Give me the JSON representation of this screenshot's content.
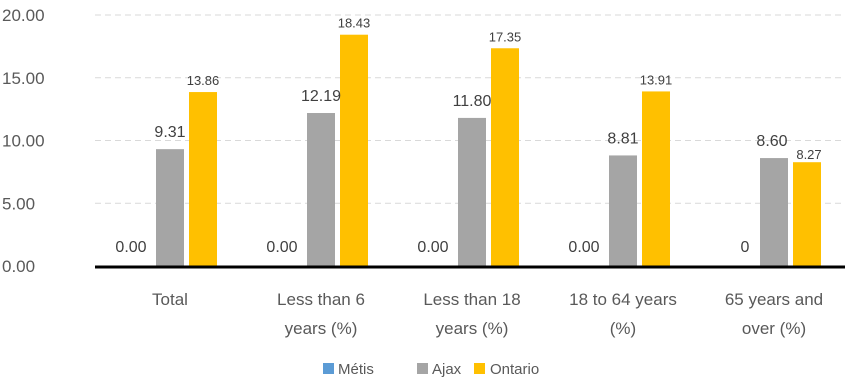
{
  "chart_data": {
    "type": "bar",
    "title": "",
    "xlabel": "",
    "ylabel": "",
    "ylim": [
      0,
      20
    ],
    "yticks": [
      "0.00",
      "5.00",
      "10.00",
      "15.00",
      "20.00"
    ],
    "grid": true,
    "legend_position": "bottom",
    "categories": [
      [
        "Total"
      ],
      [
        "Less than 6",
        "years (%)"
      ],
      [
        "Less than 18",
        "years (%)"
      ],
      [
        "18 to 64 years",
        "(%)"
      ],
      [
        "65 years and",
        "over (%)"
      ]
    ],
    "series": [
      {
        "name": "Métis",
        "color": "#5B9BD5",
        "values": [
          0,
          0,
          0,
          0,
          0
        ],
        "labels": [
          "0.00",
          "0.00",
          "0.00",
          "0.00",
          "0"
        ]
      },
      {
        "name": "Ajax",
        "color": "#A5A5A5",
        "values": [
          9.31,
          12.19,
          11.8,
          8.81,
          8.6
        ],
        "labels": [
          "9.31",
          "12.19",
          "11.80",
          "8.81",
          "8.60"
        ]
      },
      {
        "name": "Ontario",
        "color": "#FFC000",
        "values": [
          13.86,
          18.43,
          17.35,
          13.91,
          8.27
        ],
        "labels": [
          "13.86",
          "18.43",
          "17.35",
          "13.91",
          "8.27"
        ]
      }
    ]
  }
}
